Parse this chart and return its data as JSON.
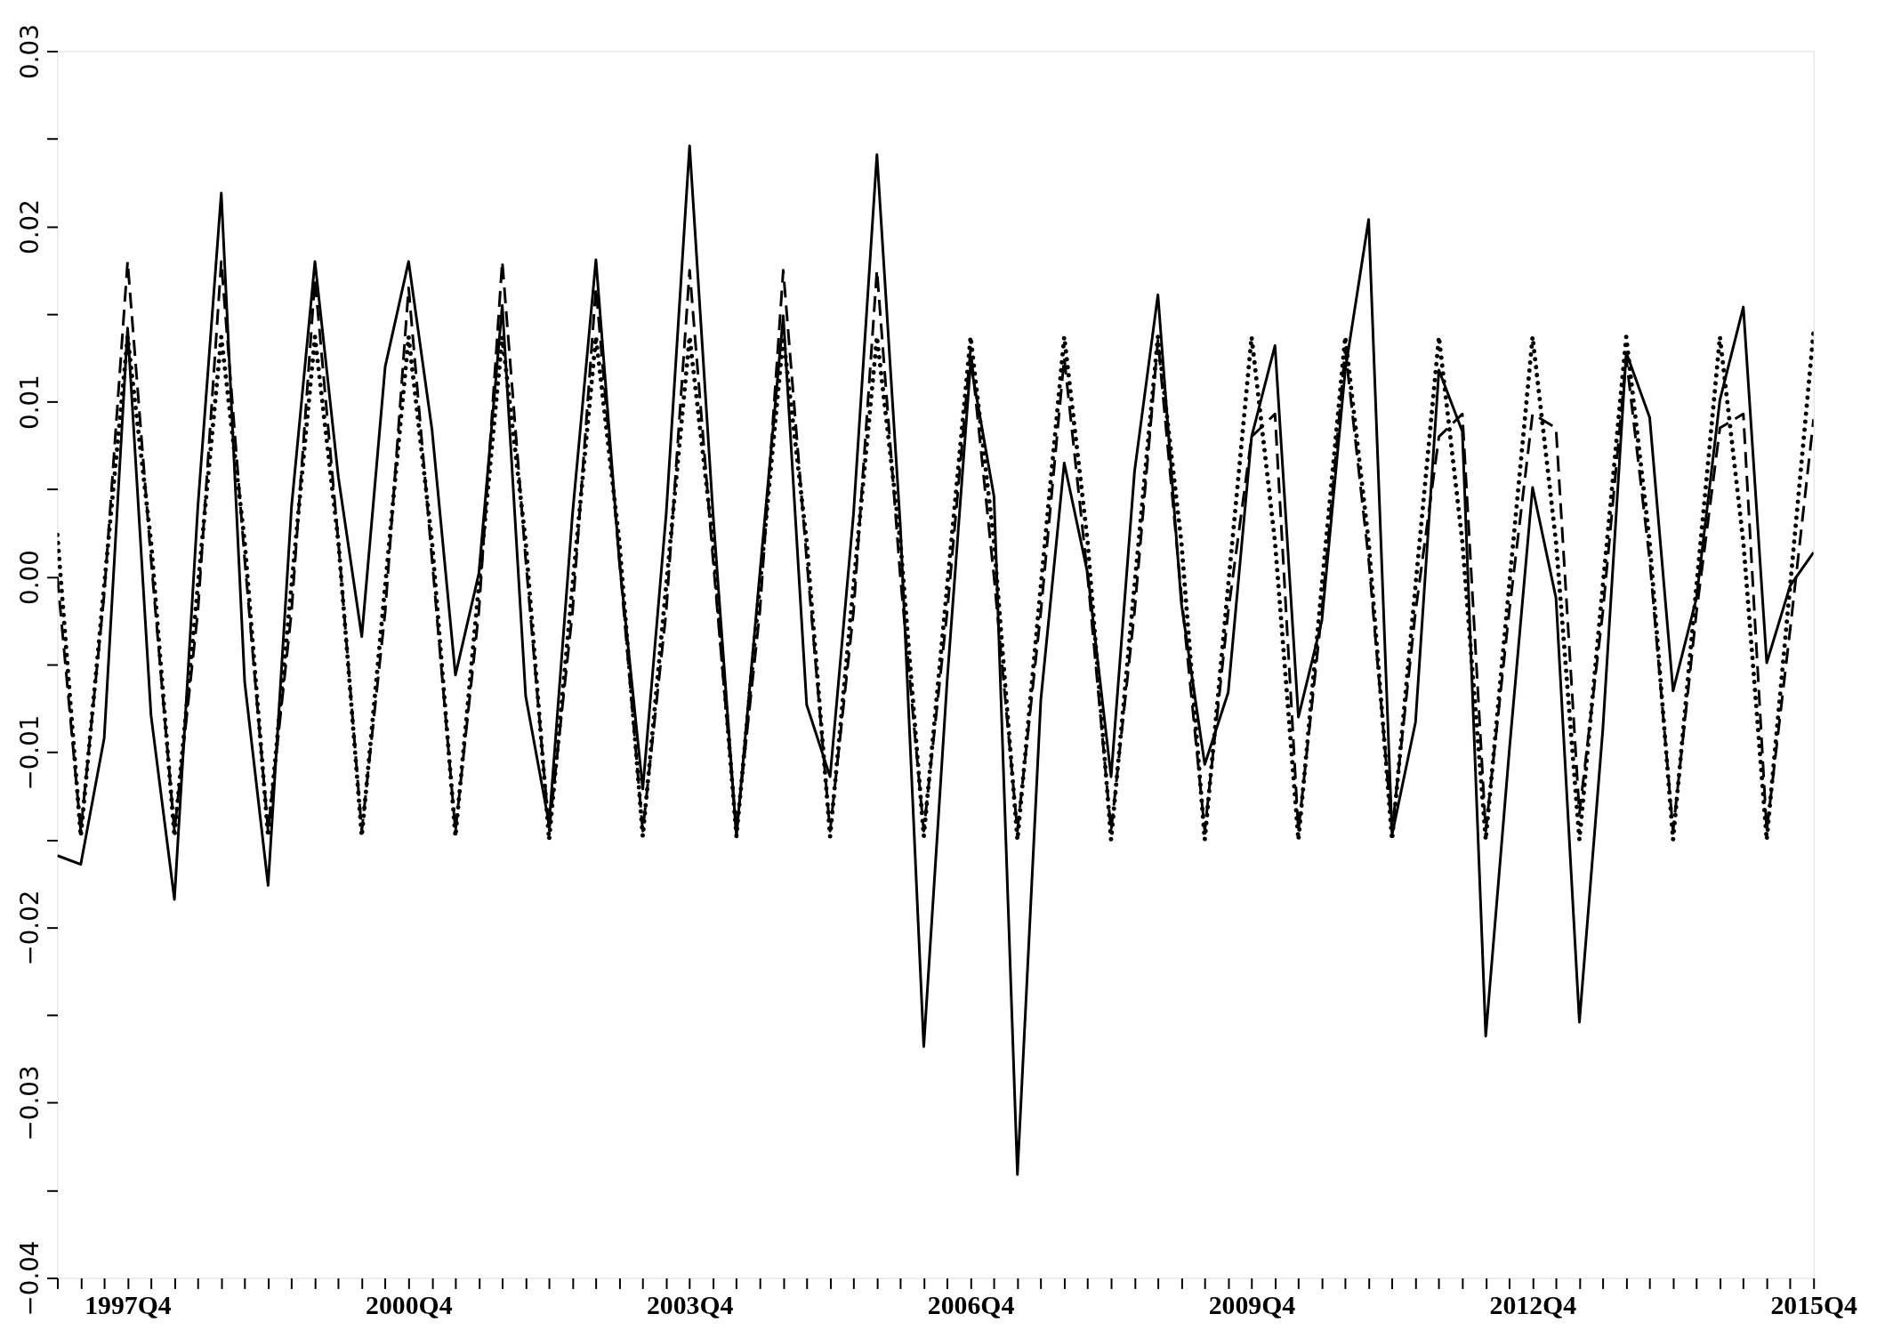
{
  "chart_data": {
    "type": "line",
    "categories": [
      null,
      null,
      null,
      "1997Q4",
      null,
      null,
      null,
      null,
      null,
      null,
      null,
      null,
      null,
      null,
      null,
      "2000Q4",
      null,
      null,
      null,
      null,
      null,
      null,
      null,
      null,
      null,
      null,
      null,
      "2003Q4",
      null,
      null,
      null,
      null,
      null,
      null,
      null,
      null,
      null,
      null,
      null,
      "2006Q4",
      null,
      null,
      null,
      null,
      null,
      null,
      null,
      null,
      null,
      null,
      null,
      "2009Q4",
      null,
      null,
      null,
      null,
      null,
      null,
      null,
      null,
      null,
      null,
      null,
      "2012Q4",
      null,
      null,
      null,
      null,
      null,
      null,
      null,
      null,
      null,
      null,
      null,
      "2015Q4"
    ],
    "series": [
      {
        "color": "#000000",
        "line_style": "solid",
        "values": [
          -0.0159,
          -0.0164,
          -0.0092,
          0.0142,
          -0.0079,
          -0.0184,
          0.004,
          0.0219,
          -0.006,
          -0.0176,
          0.004,
          0.018,
          0.0057,
          -0.0034,
          0.012,
          0.018,
          0.0084,
          -0.0056,
          0.0002,
          0.0155,
          -0.0068,
          -0.0141,
          0.0036,
          0.0181,
          0.0009,
          -0.0121,
          0.0036,
          0.0246,
          0.0036,
          -0.0148,
          0.0002,
          0.0149,
          -0.0073,
          -0.0114,
          0.0036,
          0.0241,
          0.0029,
          -0.0268,
          -0.0059,
          0.0122,
          0.0046,
          -0.0341,
          -0.007,
          0.0065,
          0.0002,
          -0.0114,
          0.006,
          0.0161,
          -0.0015,
          -0.0107,
          -0.0066,
          0.008,
          0.0132,
          -0.008,
          -0.0025,
          0.0118,
          0.0204,
          -0.0147,
          -0.0083,
          0.0118,
          0.0083,
          -0.0262,
          -0.01,
          0.0051,
          -0.0012,
          -0.0254,
          -0.0087,
          0.0128,
          0.0091,
          -0.0065,
          -0.0012,
          0.0101,
          0.0154,
          -0.0049,
          -0.0005,
          0.0014
        ]
      },
      {
        "color": "#000000",
        "line_style": "dashed",
        "values": [
          0.0,
          -0.0145,
          -0.001,
          0.018,
          0.001,
          -0.0145,
          -0.002,
          0.018,
          0.001,
          -0.0145,
          -0.002,
          0.017,
          0.002,
          -0.0145,
          -0.002,
          0.0165,
          0.001,
          -0.0145,
          -0.002,
          0.018,
          0.001,
          -0.0145,
          -0.002,
          0.0165,
          0.001,
          -0.0145,
          -0.002,
          0.0175,
          0.001,
          -0.0145,
          -0.002,
          0.0175,
          0.001,
          -0.0145,
          -0.002,
          0.0175,
          0.0,
          -0.0145,
          -0.002,
          0.013,
          0.0,
          -0.0145,
          -0.002,
          0.0125,
          0.0,
          -0.0145,
          -0.002,
          0.0135,
          -0.001,
          -0.0145,
          -0.002,
          0.008,
          0.0093,
          -0.0145,
          -0.002,
          0.013,
          0.001,
          -0.0145,
          -0.002,
          0.008,
          0.0093,
          -0.0145,
          -0.002,
          0.0093,
          0.0085,
          -0.0135,
          -0.002,
          0.0125,
          0.001,
          -0.0145,
          -0.002,
          0.0085,
          0.0093,
          -0.0145,
          -0.003,
          0.009
        ]
      },
      {
        "color": "#000000",
        "line_style": "dotted",
        "values": [
          0.0024,
          -0.0148,
          -0.0005,
          0.0137,
          0.002,
          -0.0148,
          -0.0005,
          0.0137,
          0.002,
          -0.0148,
          -0.0005,
          0.0137,
          0.002,
          -0.0148,
          -0.0005,
          0.0137,
          0.002,
          -0.0148,
          -0.0005,
          0.0137,
          0.002,
          -0.015,
          -0.0005,
          0.0137,
          0.002,
          -0.0148,
          -0.0005,
          0.0137,
          0.002,
          -0.0148,
          -0.0005,
          0.0137,
          0.002,
          -0.0148,
          -0.0005,
          0.0137,
          0.002,
          -0.0148,
          -0.0005,
          0.0137,
          0.002,
          -0.015,
          -0.0005,
          0.0137,
          0.002,
          -0.015,
          -0.0005,
          0.0137,
          0.002,
          -0.015,
          -0.0005,
          0.0137,
          0.002,
          -0.015,
          -0.0005,
          0.0137,
          0.002,
          -0.015,
          -0.0005,
          0.0137,
          0.002,
          -0.015,
          -0.0005,
          0.0137,
          0.002,
          -0.015,
          -0.0005,
          0.0137,
          0.002,
          -0.015,
          -0.0005,
          0.0137,
          0.002,
          -0.015,
          -0.0005,
          0.014
        ]
      }
    ],
    "ylim": [
      -0.04,
      0.03
    ],
    "yticks": [
      -0.04,
      {
        "value": -0.035,
        "label": null
      },
      -0.03,
      {
        "value": -0.025,
        "label": null
      },
      -0.02,
      {
        "value": -0.015,
        "label": null
      },
      -0.01,
      {
        "value": -0.005,
        "label": null
      },
      {
        "value": 0.0,
        "label": "0.00"
      },
      {
        "value": 0.005,
        "label": null
      },
      0.01,
      {
        "value": 0.015,
        "label": null
      },
      0.02,
      {
        "value": 0.025,
        "label": null
      },
      0.03
    ],
    "grid": false,
    "marker": "none"
  }
}
